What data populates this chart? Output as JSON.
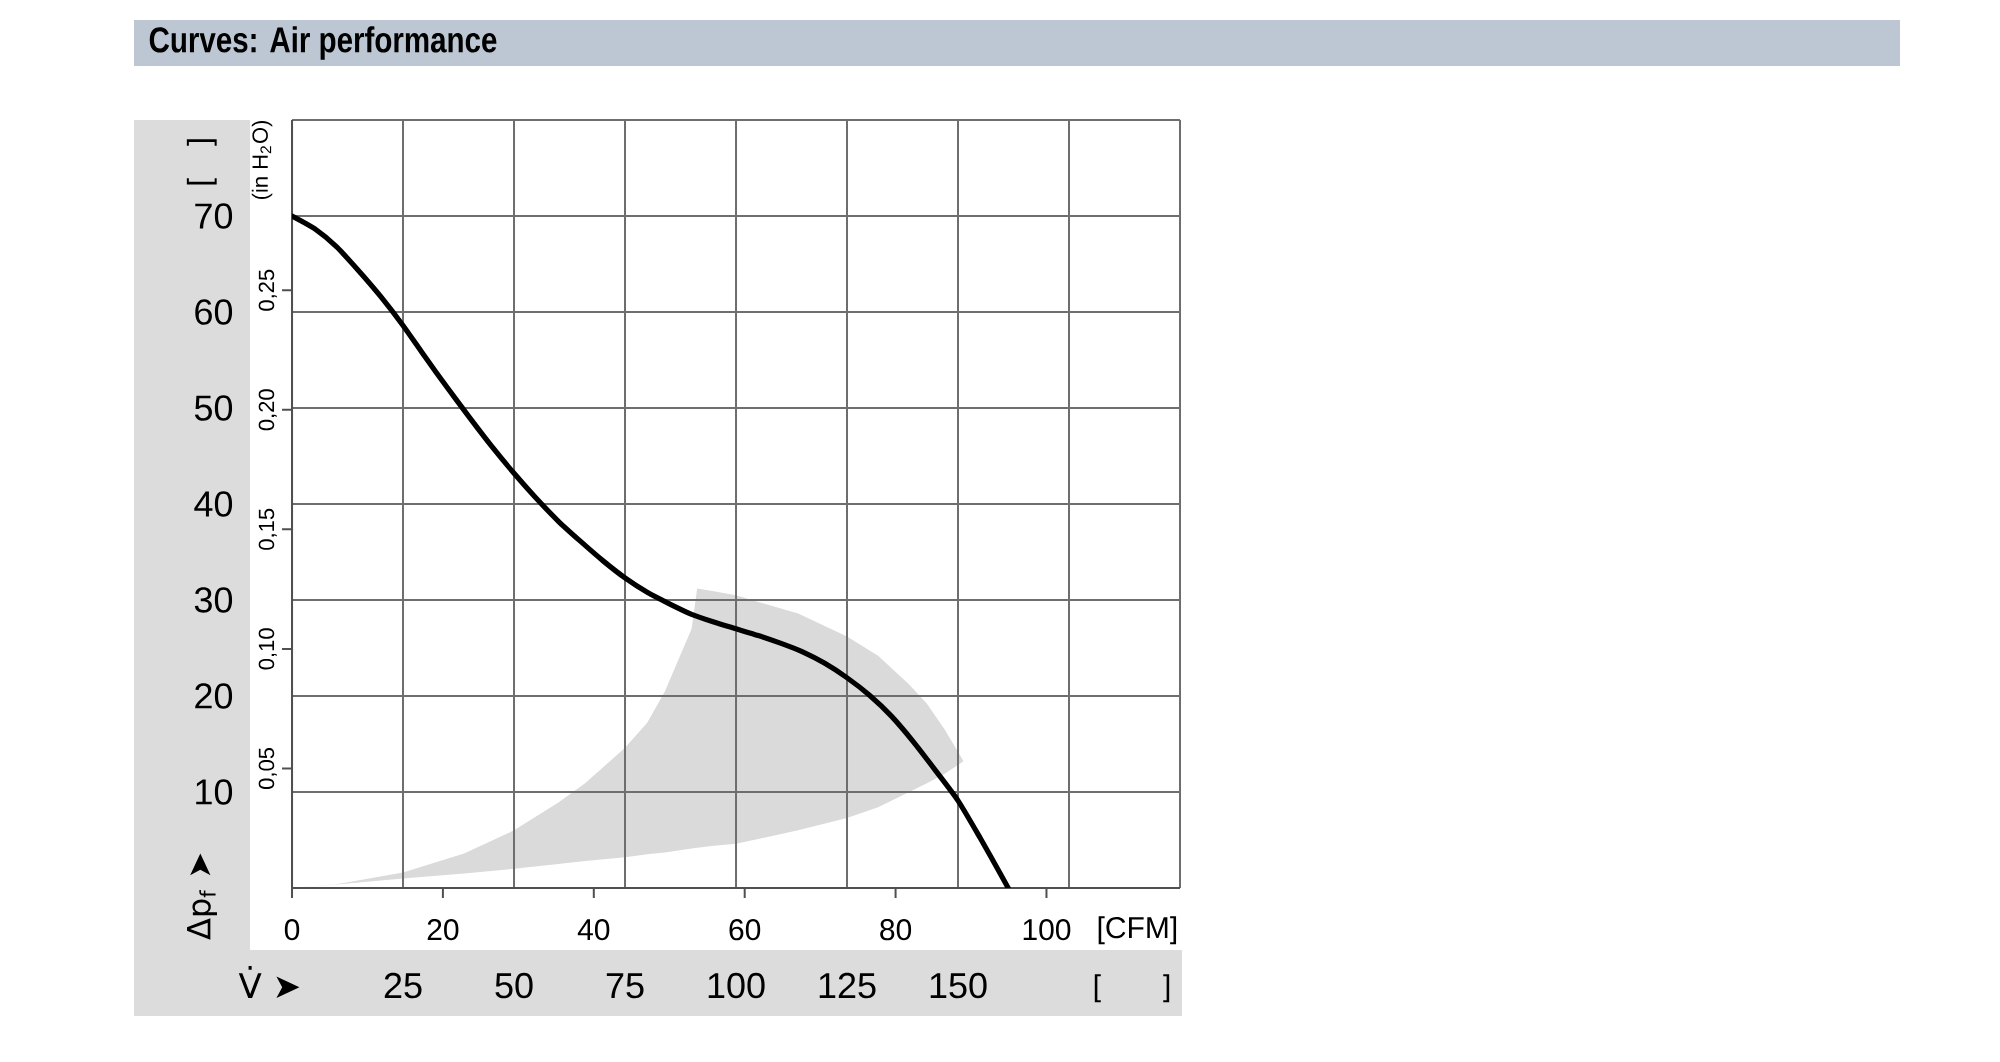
{
  "chart_data": {
    "type": "line",
    "title": "Curves: Air performance",
    "xlabel": "V̇ ➤",
    "ylabel": "Δp$_{f}$ ➤",
    "x2label": "[CFM]",
    "y2label": "(in H$_{2}$O)",
    "annotations": [
      "[ ]",
      "[ ]"
    ],
    "xlim": [
      0,
      200
    ],
    "xticks": [
      25,
      50,
      75,
      100,
      125,
      150,
      {
        "value": 175,
        "label": null
      },
      {
        "value": 200,
        "label": null
      }
    ],
    "ylim": [
      0,
      80
    ],
    "yticks": [
      10,
      20,
      30,
      40,
      50,
      60,
      70,
      {
        "value": 80,
        "label": null
      }
    ],
    "x2lim": [
      0,
      117.7
    ],
    "x2ticks": [
      0,
      20,
      40,
      60,
      80,
      100
    ],
    "y2lim": [
      0,
      0.3212
    ],
    "y2ticks": [
      {
        "value": 0.05,
        "label": "0,05"
      },
      {
        "value": 0.1,
        "label": "0,10"
      },
      {
        "value": 0.15,
        "label": "0,15"
      },
      {
        "value": 0.2,
        "label": "0,20"
      },
      {
        "value": 0.25,
        "label": "0,25"
      }
    ],
    "grid": true,
    "series": [
      {
        "color": "#dadada",
        "x": [
          0,
          10,
          25,
          38.75,
          50,
          60,
          66,
          75,
          80,
          84,
          90,
          91.25,
          95,
          100,
          105,
          114,
          125,
          132,
          139,
          143,
          147,
          151.25
        ],
        "values": [
          null,
          null,
          null,
          null,
          null,
          null,
          null,
          null,
          null,
          null,
          null,
          null,
          null,
          null,
          null,
          null,
          null,
          null,
          null,
          null,
          null,
          null
        ],
        "upper": [
          0,
          0.4,
          1.6,
          3.6,
          6.0,
          8.9,
          10.9,
          14.6,
          17.2,
          20.5,
          27.0,
          31.2,
          30.9,
          30.5,
          29.8,
          28.6,
          26.2,
          24.2,
          21.2,
          19.2,
          16.5,
          13.2
        ],
        "lower": [
          0,
          0.35,
          1.0,
          1.5,
          2.0,
          2.5,
          2.8,
          3.2,
          3.5,
          3.7,
          4.1,
          4.2,
          4.4,
          4.6,
          5.1,
          6.0,
          7.3,
          8.4,
          10.0,
          10.9,
          11.9,
          13.2
        ]
      },
      {
        "color": "#000000",
        "x": [
          0,
          5,
          10,
          15,
          20,
          25,
          30,
          35,
          40,
          45,
          50,
          55,
          60,
          65,
          70,
          75,
          80,
          85,
          90,
          95,
          100,
          105,
          110,
          115,
          120,
          125,
          130,
          135,
          140,
          145,
          150,
          155,
          160,
          161.3
        ],
        "values": [
          70,
          68.7,
          66.8,
          64.3,
          61.6,
          58.6,
          55.3,
          52.1,
          49.0,
          46.0,
          43.2,
          40.6,
          38.2,
          36.1,
          34.1,
          32.3,
          30.8,
          29.6,
          28.5,
          27.7,
          27.0,
          26.3,
          25.5,
          24.6,
          23.4,
          21.9,
          20.1,
          17.9,
          15.2,
          12.2,
          9.1,
          5.2,
          1.1,
          0
        ]
      }
    ]
  }
}
